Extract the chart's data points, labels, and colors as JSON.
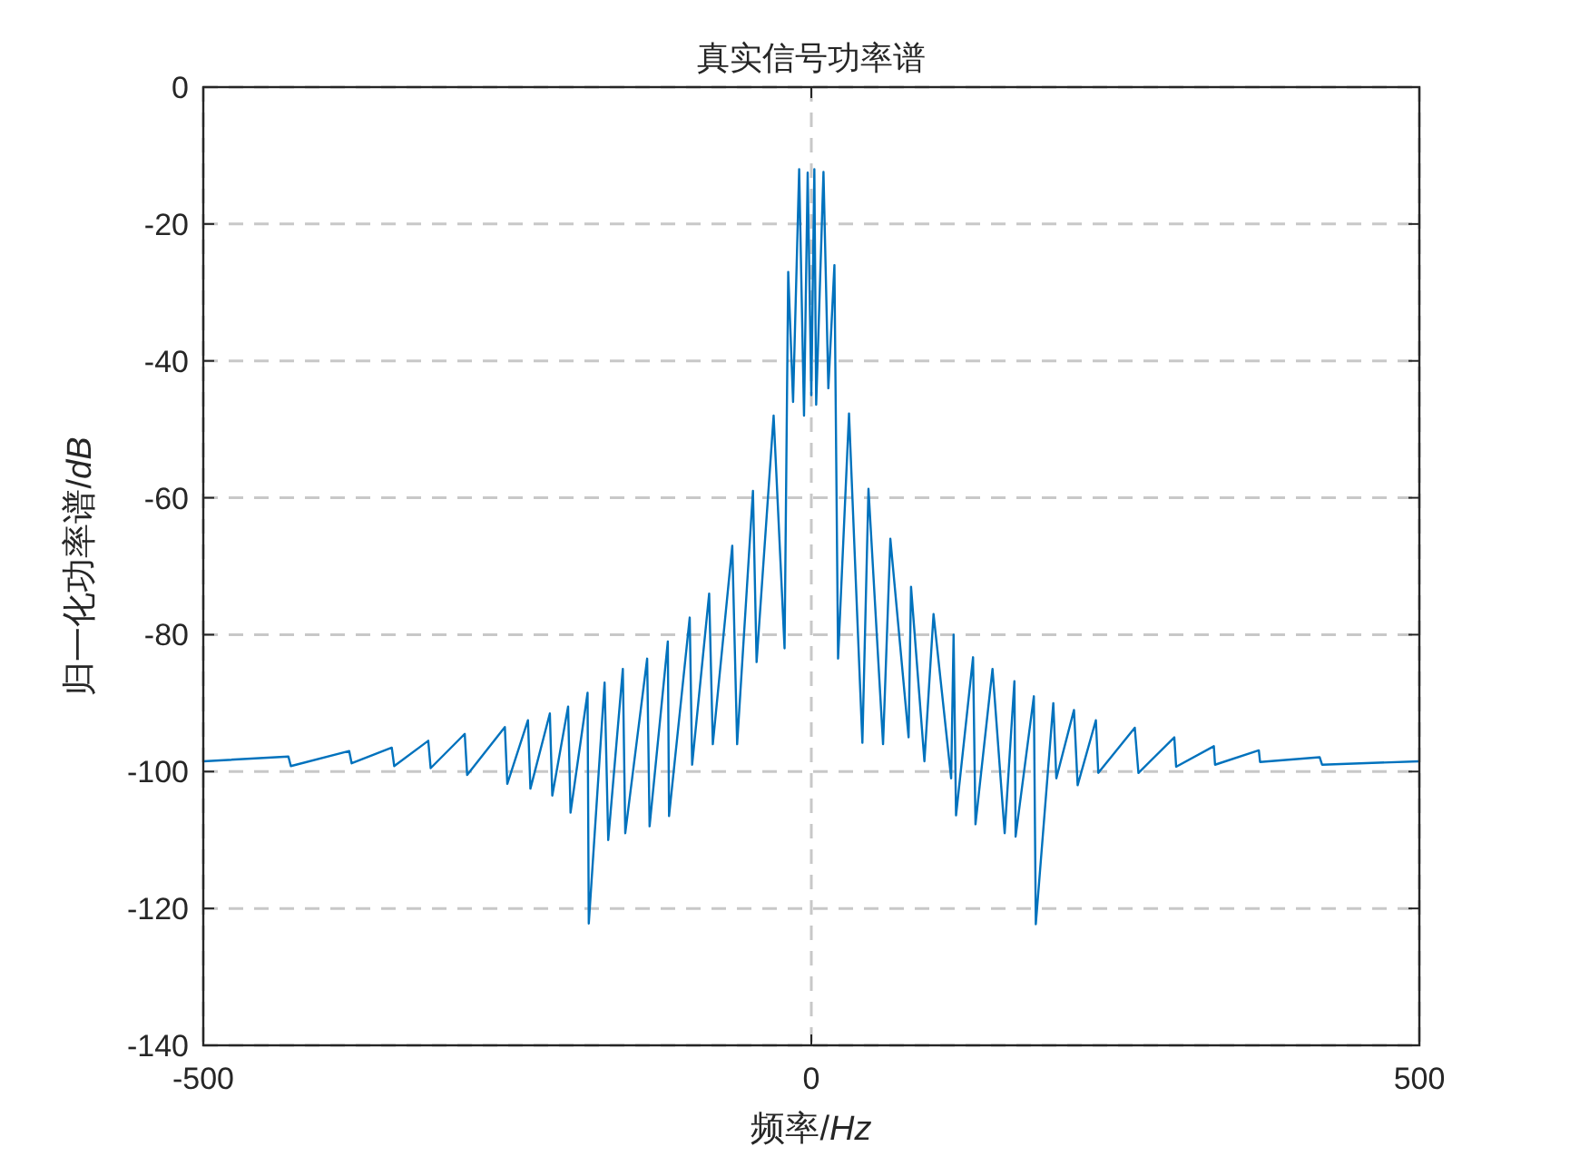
{
  "chart_data": {
    "type": "line",
    "title": "真实信号功率谱",
    "xlabel": "频率/*Hz*",
    "ylabel": "归一化功率谱/*dB*",
    "xlim": [
      -500,
      500
    ],
    "ylim": [
      -140,
      0
    ],
    "xticks": [
      -500,
      0,
      500
    ],
    "yticks": [
      -140,
      -120,
      -100,
      -80,
      -60,
      -40,
      -20,
      0
    ],
    "grid": true,
    "line_style": "solid",
    "marker": "none",
    "series": [
      {
        "color": "#0072bd",
        "x": [
          -500,
          -430,
          -428,
          -380,
          -378,
          -345,
          -343,
          -315,
          -313,
          -285,
          -283,
          -252,
          -250,
          -233,
          -231,
          -215,
          -213,
          -200,
          -198,
          -184,
          -183,
          -170,
          -167,
          -155,
          -153,
          -135,
          -133,
          -118,
          -117,
          -100,
          -98,
          -84,
          -81,
          -65,
          -61,
          -48,
          -45,
          -31,
          -22,
          -19,
          -15,
          -10,
          -6,
          -3,
          0,
          2.5,
          4,
          10,
          14,
          19,
          22,
          31,
          42,
          47,
          59,
          65,
          80,
          82,
          93,
          100.5,
          115,
          117,
          119,
          133,
          135,
          149,
          159,
          167,
          168,
          183,
          184.6,
          199,
          201.5,
          216,
          219,
          234,
          236,
          266,
          269,
          298.5,
          300,
          331,
          332,
          368,
          369,
          418,
          420,
          500
        ],
        "values": [
          -98.5,
          -97.8,
          -99.2,
          -97,
          -98.8,
          -96.5,
          -99.2,
          -95.5,
          -99.5,
          -94.5,
          -100.5,
          -93.5,
          -101.8,
          -92.5,
          -102.5,
          -91.5,
          -103.5,
          -90.5,
          -106,
          -88.5,
          -122.2,
          -87,
          -110,
          -85,
          -109,
          -83.5,
          -108,
          -81,
          -106.5,
          -77.5,
          -99,
          -74,
          -96,
          -67,
          -96,
          -59,
          -84,
          -48,
          -82,
          -27,
          -46,
          -12,
          -48,
          -12.5,
          -45,
          -12,
          -46.4,
          -12.4,
          -44,
          -26,
          -83.5,
          -47.7,
          -95.8,
          -58.7,
          -96,
          -66,
          -95,
          -73,
          -98.5,
          -77,
          -101,
          -80,
          -106.4,
          -83.3,
          -107.7,
          -85,
          -109,
          -86.8,
          -109.5,
          -89,
          -122.3,
          -90,
          -101,
          -91,
          -102,
          -92.5,
          -100.2,
          -93.6,
          -100.2,
          -95,
          -99.3,
          -96.3,
          -99,
          -96.9,
          -98.6,
          -97.9,
          -99,
          -98.5
        ]
      }
    ]
  }
}
